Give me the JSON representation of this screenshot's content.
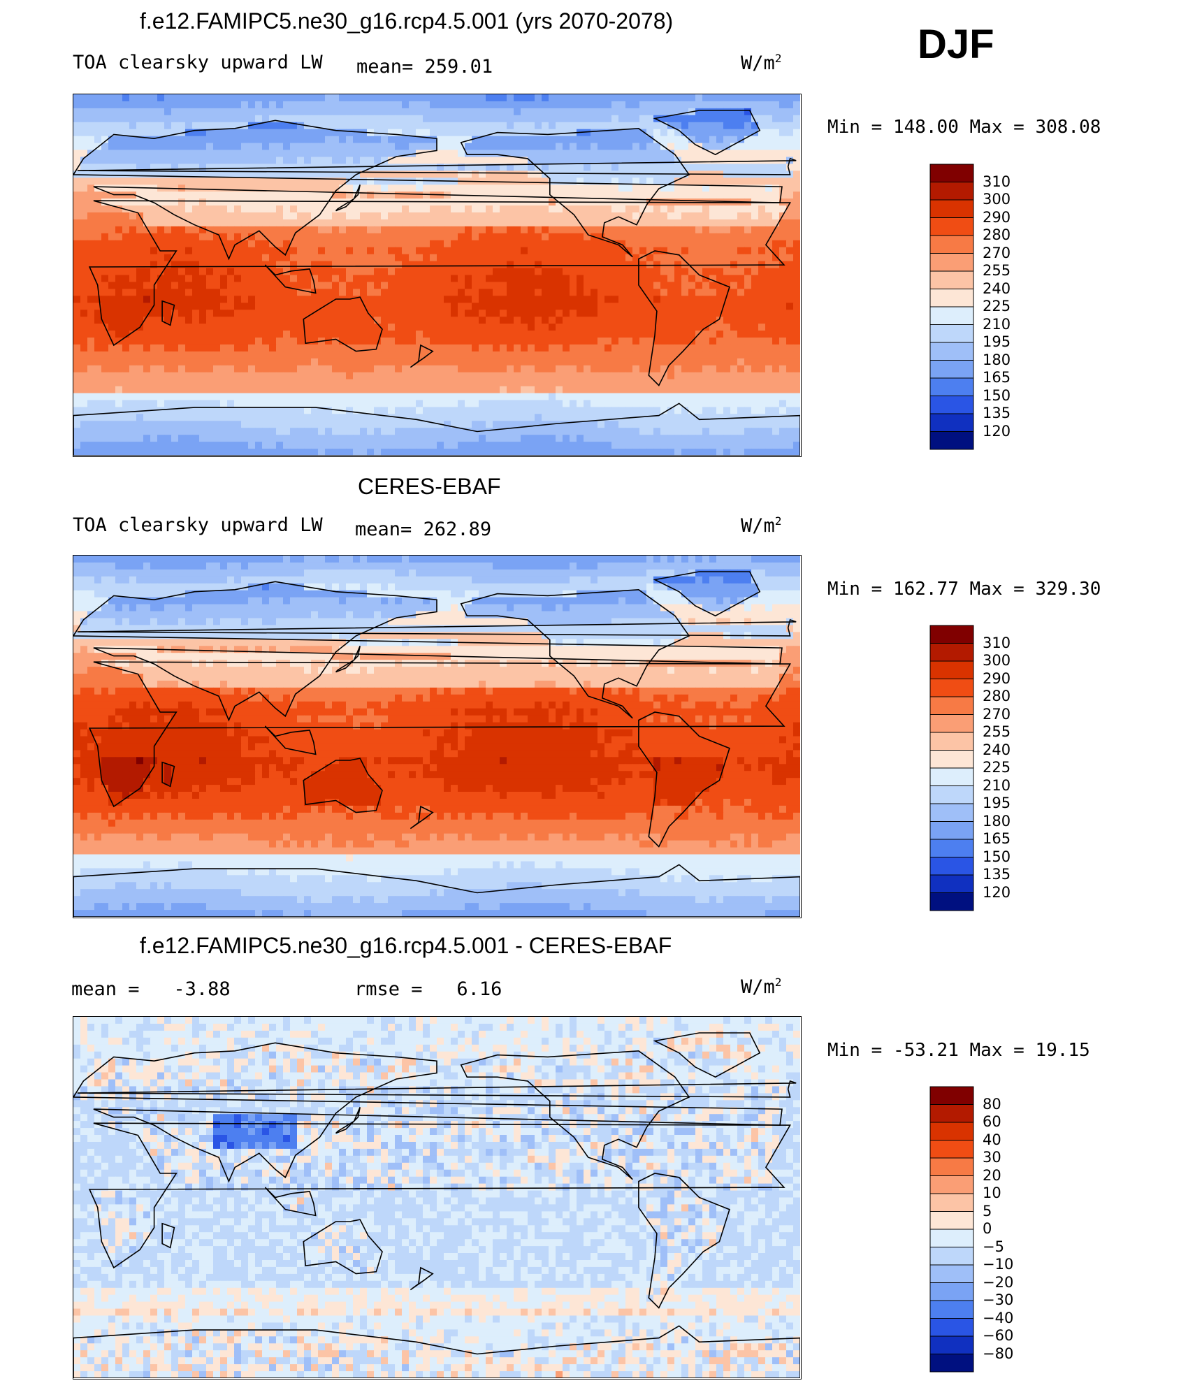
{
  "season": "DJF",
  "panels": [
    {
      "title": "f.e12.FAMIPC5.ne30_g16.rcp4.5.001 (yrs 2070-2078)",
      "left_label": "TOA clearsky upward LW",
      "stat_label": "mean=",
      "stat_value": "259.01",
      "units": "W/m",
      "units_sup": "2",
      "min_label": "Min",
      "min_value": "148.00",
      "max_label": "Max",
      "max_value": "308.08",
      "scheme": "abs"
    },
    {
      "title": "CERES-EBAF",
      "left_label": "TOA clearsky upward LW",
      "stat_label": "mean=",
      "stat_value": "262.89",
      "units": "W/m",
      "units_sup": "2",
      "min_label": "Min",
      "min_value": "162.77",
      "max_label": "Max",
      "max_value": "329.30",
      "scheme": "abs"
    },
    {
      "title": "f.e12.FAMIPC5.ne30_g16.rcp4.5.001 - CERES-EBAF",
      "mean_label": "mean =",
      "mean_value": "-3.88",
      "rmse_label": "rmse =",
      "rmse_value": "6.16",
      "units": "W/m",
      "units_sup": "2",
      "min_label": "Min",
      "min_value": "-53.21",
      "max_label": "Max",
      "max_value": "19.15",
      "scheme": "diff"
    }
  ],
  "chart_data": [
    {
      "type": "heatmap",
      "title": "f.e12.FAMIPC5.ne30_g16.rcp4.5.001 (yrs 2070-2078)",
      "variable": "TOA clearsky upward LW",
      "units": "W/m2",
      "mean": 259.01,
      "min": 148.0,
      "max": 308.08,
      "colorbar_levels": [
        310,
        300,
        290,
        280,
        270,
        255,
        240,
        225,
        210,
        195,
        180,
        165,
        150,
        135,
        120
      ],
      "colorbar_colors": [
        "#800000",
        "#b31a00",
        "#d93300",
        "#f04d14",
        "#f77a45",
        "#fa9e75",
        "#fcc4a6",
        "#fde6d6",
        "#ddeefc",
        "#bed7fa",
        "#9fbff8",
        "#7aa3f4",
        "#4d7ff0",
        "#2a55e5",
        "#1030c0",
        "#001080"
      ]
    },
    {
      "type": "heatmap",
      "title": "CERES-EBAF",
      "variable": "TOA clearsky upward LW",
      "units": "W/m2",
      "mean": 262.89,
      "min": 162.77,
      "max": 329.3,
      "colorbar_levels": [
        310,
        300,
        290,
        280,
        270,
        255,
        240,
        225,
        210,
        195,
        180,
        165,
        150,
        135,
        120
      ],
      "colorbar_colors": [
        "#800000",
        "#b31a00",
        "#d93300",
        "#f04d14",
        "#f77a45",
        "#fa9e75",
        "#fcc4a6",
        "#fde6d6",
        "#ddeefc",
        "#bed7fa",
        "#9fbff8",
        "#7aa3f4",
        "#4d7ff0",
        "#2a55e5",
        "#1030c0",
        "#001080"
      ]
    },
    {
      "type": "heatmap",
      "title": "f.e12.FAMIPC5.ne30_g16.rcp4.5.001 - CERES-EBAF",
      "units": "W/m2",
      "mean": -3.88,
      "rmse": 6.16,
      "min": -53.21,
      "max": 19.15,
      "colorbar_levels": [
        "80",
        "60",
        "40",
        "30",
        "20",
        "10",
        "5",
        "0",
        "−5",
        "−10",
        "−20",
        "−30",
        "−40",
        "−60",
        "−80"
      ],
      "colorbar_colors": [
        "#800000",
        "#b31a00",
        "#d93300",
        "#f04d14",
        "#f77a45",
        "#fa9e75",
        "#fcc4a6",
        "#fde6d6",
        "#ddeefc",
        "#bed7fa",
        "#9fbff8",
        "#7aa3f4",
        "#4d7ff0",
        "#2a55e5",
        "#1030c0",
        "#001080"
      ]
    }
  ]
}
